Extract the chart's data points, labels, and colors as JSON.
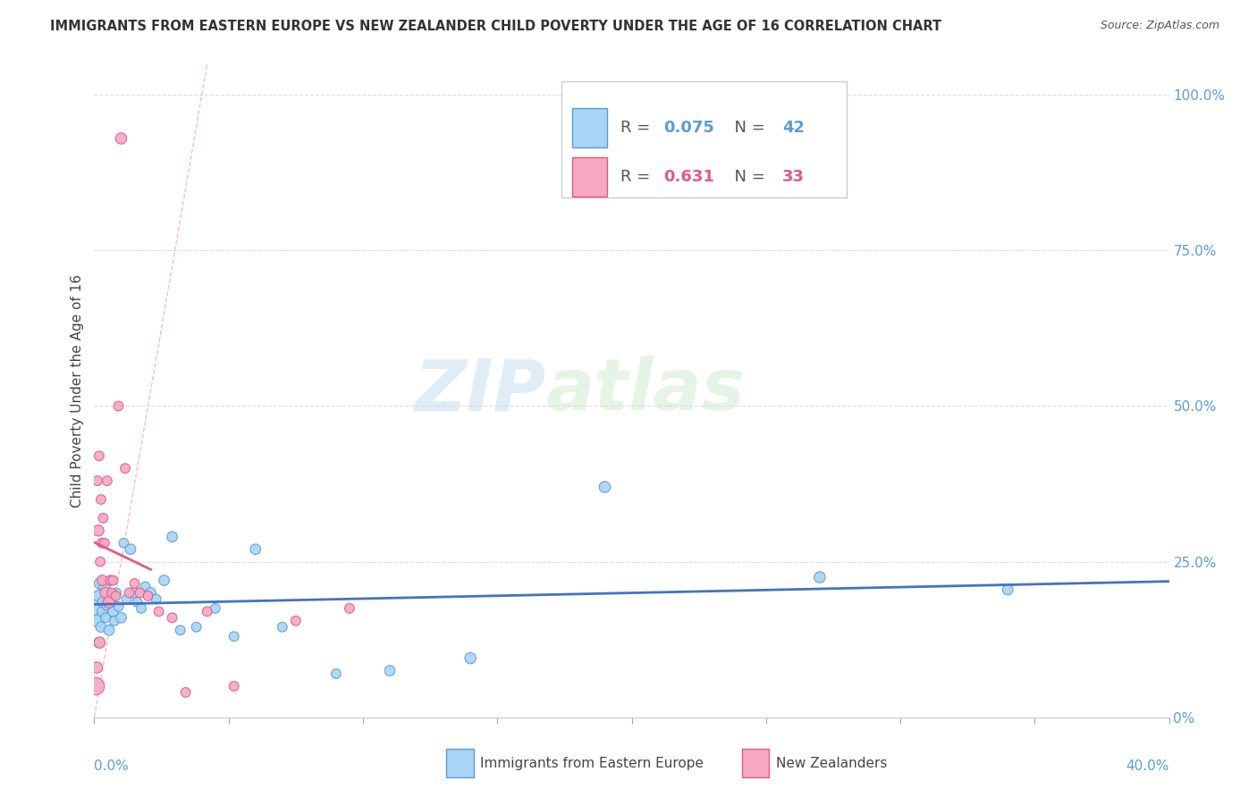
{
  "title": "IMMIGRANTS FROM EASTERN EUROPE VS NEW ZEALANDER CHILD POVERTY UNDER THE AGE OF 16 CORRELATION CHART",
  "source": "Source: ZipAtlas.com",
  "ylabel": "Child Poverty Under the Age of 16",
  "right_ytick_vals": [
    0,
    0.25,
    0.5,
    0.75,
    1.0
  ],
  "right_ytick_labels": [
    "0%",
    "25.0%",
    "50.0%",
    "75.0%",
    "100.0%"
  ],
  "color_blue": "#A8D4F5",
  "color_pink": "#F5A8C0",
  "color_blue_edge": "#5B9BD5",
  "color_pink_edge": "#E05A8A",
  "color_blue_line": "#4472C4",
  "color_pink_line": "#E05A8A",
  "color_dash": "#F0B0C0",
  "watermark_zip": "ZIP",
  "watermark_atlas": "atlas",
  "blue_x": [
    0.0008,
    0.0012,
    0.0015,
    0.0018,
    0.0022,
    0.0025,
    0.003,
    0.0033,
    0.0038,
    0.0042,
    0.0048,
    0.0055,
    0.006,
    0.0065,
    0.007,
    0.0075,
    0.0082,
    0.009,
    0.01,
    0.011,
    0.012,
    0.0135,
    0.0148,
    0.016,
    0.0175,
    0.019,
    0.021,
    0.023,
    0.026,
    0.029,
    0.032,
    0.038,
    0.045,
    0.052,
    0.06,
    0.07,
    0.09,
    0.11,
    0.14,
    0.19,
    0.27,
    0.34
  ],
  "blue_y": [
    0.175,
    0.155,
    0.195,
    0.12,
    0.215,
    0.145,
    0.17,
    0.185,
    0.21,
    0.16,
    0.18,
    0.14,
    0.22,
    0.19,
    0.17,
    0.155,
    0.2,
    0.178,
    0.16,
    0.28,
    0.19,
    0.27,
    0.2,
    0.185,
    0.175,
    0.21,
    0.2,
    0.19,
    0.22,
    0.29,
    0.14,
    0.145,
    0.175,
    0.13,
    0.27,
    0.145,
    0.07,
    0.075,
    0.095,
    0.37,
    0.225,
    0.205
  ],
  "blue_sizes": [
    200,
    100,
    80,
    70,
    90,
    70,
    70,
    80,
    80,
    60,
    70,
    70,
    60,
    60,
    70,
    60,
    60,
    60,
    70,
    60,
    60,
    70,
    70,
    60,
    60,
    60,
    70,
    60,
    70,
    70,
    60,
    60,
    60,
    60,
    70,
    60,
    60,
    70,
    80,
    80,
    80,
    70
  ],
  "pink_x": [
    0.0005,
    0.001,
    0.0012,
    0.0015,
    0.0018,
    0.002,
    0.0022,
    0.0025,
    0.0028,
    0.003,
    0.0033,
    0.0038,
    0.0042,
    0.0048,
    0.0055,
    0.006,
    0.0065,
    0.007,
    0.008,
    0.009,
    0.01,
    0.0115,
    0.013,
    0.015,
    0.017,
    0.02,
    0.024,
    0.029,
    0.034,
    0.042,
    0.052,
    0.075,
    0.095
  ],
  "pink_y": [
    0.05,
    0.08,
    0.38,
    0.3,
    0.42,
    0.12,
    0.25,
    0.35,
    0.28,
    0.22,
    0.32,
    0.28,
    0.2,
    0.38,
    0.185,
    0.22,
    0.2,
    0.22,
    0.195,
    0.5,
    0.93,
    0.4,
    0.2,
    0.215,
    0.2,
    0.195,
    0.17,
    0.16,
    0.04,
    0.17,
    0.05,
    0.155,
    0.175
  ],
  "pink_sizes": [
    200,
    80,
    60,
    80,
    60,
    80,
    60,
    60,
    60,
    70,
    60,
    60,
    80,
    60,
    90,
    60,
    60,
    60,
    60,
    60,
    80,
    60,
    60,
    60,
    60,
    60,
    60,
    60,
    60,
    60,
    60,
    60,
    60
  ]
}
